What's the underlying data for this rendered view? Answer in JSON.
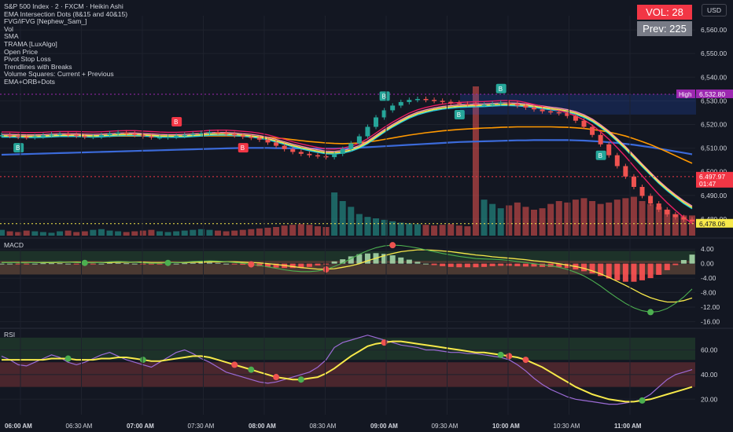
{
  "header": {
    "title": "S&P 500 Index · 2 · FXCM · Heikin Ashi",
    "indicators": [
      "EMA Intersection Dots (8&15 and 40&15)",
      "FVG/iFVG [Nephew_Sam_]",
      "Vol",
      "SMA",
      "TRAMA [LuxAlgo]",
      "Open Price",
      "Pivot Stop Loss",
      "Trendlines with Breaks",
      "Volume Squares: Current + Previous",
      "EMA+ORB+Dots"
    ],
    "vol_current": "VOL: 28",
    "vol_previous": "Prev: 225",
    "currency": "USD"
  },
  "panes": {
    "macd_label": "MACD",
    "rsi_label": "RSI"
  },
  "colors": {
    "background": "#131722",
    "grid": "#1e222d",
    "up": "#26a69a",
    "down": "#ef5350",
    "ema_fast": "#f7e94a",
    "ema_mid": "#26c6da",
    "ema_slow": "#f48fb1",
    "ema_long": "#e91e63",
    "sma_blue": "#3b6ad9",
    "sma_orange": "#ff9800",
    "high_label": "#9c27b0",
    "price_red": "#f23645",
    "price_yellow": "#f7e94a"
  },
  "chart_data": [
    {
      "type": "candlestick",
      "title": "S&P 500 Index · 2 · FXCM · Heikin Ashi",
      "y_axis_ticks": [
        6480,
        6490,
        6500,
        6510,
        6520,
        6530,
        6540,
        6550,
        6560
      ],
      "ylim": [
        6473,
        6566
      ],
      "x_axis_ticks": [
        "06:00 AM",
        "06:30 AM",
        "07:00 AM",
        "07:30 AM",
        "08:00 AM",
        "08:30 AM",
        "09:00 AM",
        "09:30 AM",
        "10:00 AM",
        "10:30 AM",
        "11:00 AM"
      ],
      "price_labels": [
        {
          "label": "High",
          "value": "6,532.80"
        },
        {
          "label": "",
          "value": "6,497.97"
        },
        {
          "label": "",
          "value": "01:47"
        },
        {
          "label": "",
          "value": "6,478.06"
        }
      ],
      "signals": [
        "B",
        "B",
        "B",
        "B",
        "B",
        "B",
        "B"
      ],
      "close_series": [
        6515.5,
        6515.2,
        6514.8,
        6514.6,
        6515.0,
        6515.4,
        6515.8,
        6516.0,
        6515.6,
        6515.2,
        6514.8,
        6514.9,
        6515.5,
        6516.2,
        6516.6,
        6516.2,
        6515.6,
        6515.0,
        6514.6,
        6514.6,
        6514.8,
        6515.2,
        6515.6,
        6516.0,
        6516.4,
        6516.8,
        6516.6,
        6516.0,
        6515.4,
        6514.8,
        6514.4,
        6513.6,
        6512.4,
        6511.0,
        6509.6,
        6508.4,
        6507.6,
        6507.0,
        6506.6,
        6506.2,
        6507.6,
        6509.6,
        6512.0,
        6515.0,
        6519.0,
        6523.0,
        6526.0,
        6528.0,
        6529.5,
        6530.4,
        6530.8,
        6530.4,
        6530.0,
        6529.6,
        6529.2,
        6528.8,
        6528.6,
        6528.4,
        6528.4,
        6528.8,
        6529.2,
        6528.8,
        6528.0,
        6527.2,
        6526.4,
        6525.6,
        6525.2,
        6524.8,
        6523.6,
        6521.6,
        6519.0,
        6515.6,
        6511.6,
        6507.0,
        6502.4,
        6498.0,
        6493.6,
        6489.8,
        6486.6,
        6484.0,
        6482.0,
        6480.8,
        6479.8,
        6479.0
      ],
      "ema_fast": [
        6515.2,
        6515.2,
        6515.1,
        6515.0,
        6515.0,
        6515.1,
        6515.3,
        6515.4,
        6515.4,
        6515.4,
        6515.3,
        6515.2,
        6515.3,
        6515.5,
        6515.7,
        6515.8,
        6515.8,
        6515.6,
        6515.4,
        6515.2,
        6515.1,
        6515.1,
        6515.2,
        6515.4,
        6515.6,
        6515.9,
        6516.0,
        6516.0,
        6515.8,
        6515.5,
        6515.2,
        6514.7,
        6514.0,
        6513.1,
        6512.1,
        6511.1,
        6510.2,
        6509.4,
        6508.7,
        6508.1,
        6508.0,
        6508.4,
        6509.2,
        6510.5,
        6512.4,
        6514.8,
        6517.2,
        6519.4,
        6521.4,
        6523.2,
        6524.6,
        6525.6,
        6526.4,
        6527.0,
        6527.4,
        6527.7,
        6527.9,
        6528.0,
        6528.1,
        6528.3,
        6528.5,
        6528.5,
        6528.4,
        6528.1,
        6527.7,
        6527.2,
        6526.7,
        6526.3,
        6525.7,
        6524.8,
        6523.5,
        6521.7,
        6519.3,
        6516.6,
        6513.4,
        6510.0,
        6506.3,
        6502.7,
        6499.1,
        6495.6,
        6492.5,
        6489.7,
        6487.1,
        6484.9
      ],
      "sma_blue": [
        6507.2,
        6507.3,
        6507.4,
        6507.5,
        6507.6,
        6507.7,
        6507.8,
        6507.9,
        6508.0,
        6508.1,
        6508.2,
        6508.3,
        6508.4,
        6508.5,
        6508.6,
        6508.7,
        6508.8,
        6508.9,
        6509.0,
        6509.1,
        6509.2,
        6509.3,
        6509.4,
        6509.5,
        6509.6,
        6509.7,
        6509.8,
        6509.9,
        6510.0,
        6510.1,
        6510.1,
        6510.1,
        6510.1,
        6510.0,
        6510.0,
        6509.9,
        6509.9,
        6509.8,
        6509.8,
        6509.8,
        6509.8,
        6509.9,
        6510.0,
        6510.2,
        6510.4,
        6510.6,
        6510.8,
        6511.0,
        6511.2,
        6511.4,
        6511.6,
        6511.8,
        6512.0,
        6512.2,
        6512.4,
        6512.6,
        6512.7,
        6512.8,
        6512.9,
        6513.0,
        6513.1,
        6513.2,
        6513.3,
        6513.3,
        6513.4,
        6513.4,
        6513.4,
        6513.4,
        6513.4,
        6513.3,
        6513.2,
        6513.0,
        6512.8,
        6512.5,
        6512.2,
        6511.8,
        6511.4,
        6510.9,
        6510.4,
        6509.8,
        6509.2,
        6508.6,
        6508.0,
        6507.4
      ],
      "sma_orange": [
        6515.0,
        6515.0,
        6515.0,
        6515.0,
        6515.0,
        6515.0,
        6515.0,
        6515.0,
        6515.0,
        6515.0,
        6515.0,
        6515.0,
        6515.0,
        6515.0,
        6515.1,
        6515.1,
        6515.1,
        6515.1,
        6515.1,
        6515.1,
        6515.1,
        6515.1,
        6515.1,
        6515.1,
        6515.1,
        6515.2,
        6515.2,
        6515.2,
        6515.2,
        6515.1,
        6515.0,
        6514.8,
        6514.6,
        6514.3,
        6514.0,
        6513.6,
        6513.2,
        6512.8,
        6512.5,
        6512.2,
        6512.0,
        6511.9,
        6512.0,
        6512.2,
        6512.6,
        6513.1,
        6513.7,
        6514.3,
        6514.9,
        6515.5,
        6516.0,
        6516.5,
        6516.9,
        6517.3,
        6517.6,
        6517.9,
        6518.1,
        6518.3,
        6518.5,
        6518.6,
        6518.8,
        6518.9,
        6519.0,
        6519.0,
        6519.0,
        6519.0,
        6519.0,
        6518.9,
        6518.8,
        6518.6,
        6518.3,
        6517.9,
        6517.4,
        6516.8,
        6516.0,
        6515.1,
        6514.0,
        6512.8,
        6511.5,
        6510.0,
        6508.4,
        6506.8,
        6505.2,
        6503.6
      ],
      "volume": [
        8,
        6,
        5,
        7,
        6,
        5,
        4,
        6,
        7,
        5,
        6,
        8,
        9,
        7,
        6,
        5,
        6,
        7,
        8,
        6,
        5,
        6,
        7,
        8,
        9,
        8,
        7,
        6,
        7,
        8,
        9,
        10,
        11,
        12,
        14,
        15,
        16,
        15,
        13,
        12,
        60,
        48,
        40,
        30,
        26,
        24,
        22,
        20,
        18,
        17,
        16,
        15,
        14,
        15,
        16,
        14,
        13,
        225,
        50,
        44,
        38,
        42,
        46,
        40,
        36,
        38,
        44,
        48,
        46,
        50,
        52,
        48,
        44,
        46,
        50,
        52,
        54,
        48,
        44,
        40,
        36,
        30,
        28,
        28
      ]
    },
    {
      "type": "line",
      "title": "MACD",
      "y_axis_ticks": [
        4.0,
        0.0,
        -4.0,
        -8.0,
        -12.0,
        -16.0
      ],
      "ylim": [
        -17,
        6
      ],
      "macd_line": [
        0.3,
        0.3,
        0.2,
        0.2,
        0.3,
        0.4,
        0.4,
        0.5,
        0.4,
        0.3,
        0.2,
        0.2,
        0.3,
        0.5,
        0.6,
        0.5,
        0.4,
        0.2,
        0.1,
        0.1,
        0.2,
        0.3,
        0.4,
        0.6,
        0.7,
        0.8,
        0.7,
        0.5,
        0.3,
        0.1,
        -0.2,
        -0.5,
        -0.9,
        -1.3,
        -1.7,
        -2.0,
        -2.2,
        -2.2,
        -2.0,
        -1.6,
        -0.8,
        0.2,
        1.4,
        2.6,
        3.6,
        4.4,
        4.9,
        5.1,
        5.0,
        4.7,
        4.3,
        3.8,
        3.3,
        2.8,
        2.4,
        2.0,
        1.7,
        1.4,
        1.3,
        1.2,
        1.1,
        0.9,
        0.6,
        0.3,
        0.0,
        -0.3,
        -0.6,
        -1.0,
        -1.6,
        -2.4,
        -3.4,
        -4.7,
        -6.2,
        -7.9,
        -9.5,
        -11.0,
        -12.2,
        -13.0,
        -13.4,
        -13.2,
        -12.4,
        -11.0,
        -9.2,
        -7.0
      ],
      "signal_line": [
        0.3,
        0.3,
        0.3,
        0.3,
        0.3,
        0.3,
        0.3,
        0.4,
        0.4,
        0.4,
        0.3,
        0.3,
        0.3,
        0.3,
        0.4,
        0.4,
        0.4,
        0.4,
        0.3,
        0.3,
        0.3,
        0.3,
        0.3,
        0.4,
        0.4,
        0.5,
        0.5,
        0.5,
        0.5,
        0.4,
        0.3,
        0.2,
        0.0,
        -0.2,
        -0.5,
        -0.8,
        -1.1,
        -1.3,
        -1.5,
        -1.5,
        -1.4,
        -1.0,
        -0.6,
        0.0,
        0.8,
        1.5,
        2.2,
        2.8,
        3.3,
        3.6,
        3.8,
        3.8,
        3.7,
        3.5,
        3.3,
        3.0,
        2.7,
        2.4,
        2.2,
        1.9,
        1.7,
        1.5,
        1.3,
        1.1,
        0.8,
        0.6,
        0.3,
        0.0,
        -0.4,
        -0.8,
        -1.3,
        -2.0,
        -2.8,
        -3.8,
        -4.9,
        -6.0,
        -7.2,
        -8.4,
        -9.4,
        -10.1,
        -10.6,
        -10.6,
        -10.2,
        -9.5
      ],
      "histogram": [
        0.0,
        0.0,
        -0.1,
        -0.1,
        0.0,
        0.1,
        0.1,
        0.1,
        0.0,
        -0.1,
        -0.1,
        -0.1,
        0.0,
        0.2,
        0.2,
        0.1,
        0.0,
        -0.2,
        -0.2,
        -0.2,
        -0.1,
        0.0,
        0.1,
        0.2,
        0.3,
        0.3,
        0.2,
        0.0,
        -0.2,
        -0.3,
        -0.5,
        -0.7,
        -0.9,
        -1.1,
        -1.2,
        -1.2,
        -1.1,
        -0.9,
        -0.5,
        -0.1,
        0.6,
        1.2,
        2.0,
        2.6,
        2.8,
        2.9,
        2.7,
        2.3,
        1.7,
        1.1,
        0.5,
        0.0,
        -0.4,
        -0.7,
        -0.9,
        -1.0,
        -1.0,
        -1.0,
        -0.9,
        -0.7,
        -0.6,
        -0.6,
        -0.7,
        -0.8,
        -0.8,
        -0.9,
        -0.9,
        -1.0,
        -1.2,
        -1.6,
        -2.1,
        -2.7,
        -3.4,
        -4.1,
        -4.6,
        -5.0,
        -5.0,
        -4.6,
        -4.0,
        -3.1,
        -1.8,
        -0.4,
        1.0,
        2.5
      ]
    },
    {
      "type": "line",
      "title": "RSI",
      "y_axis_ticks": [
        60.0,
        40.0,
        20.0
      ],
      "ylim": [
        10,
        75
      ],
      "rsi": [
        55,
        52,
        48,
        47,
        50,
        53,
        56,
        54,
        50,
        48,
        50,
        53,
        56,
        58,
        55,
        52,
        50,
        48,
        46,
        50,
        54,
        58,
        60,
        57,
        53,
        50,
        46,
        42,
        40,
        38,
        36,
        34,
        33,
        34,
        36,
        38,
        40,
        42,
        46,
        52,
        62,
        66,
        68,
        70,
        72,
        70,
        68,
        66,
        64,
        63,
        62,
        60,
        60,
        59,
        58,
        58,
        57,
        57,
        56,
        55,
        54,
        52,
        48,
        43,
        37,
        32,
        28,
        25,
        22,
        20,
        19,
        18,
        17,
        16,
        16,
        17,
        18,
        20,
        24,
        30,
        36,
        40,
        42,
        44
      ],
      "rsi_ma": [
        52,
        52,
        52,
        52,
        52,
        52,
        53,
        53,
        53,
        52,
        52,
        52,
        53,
        53,
        54,
        54,
        53,
        52,
        51,
        51,
        52,
        53,
        54,
        55,
        55,
        54,
        52,
        50,
        48,
        46,
        44,
        42,
        40,
        38,
        37,
        36,
        36,
        37,
        38,
        41,
        45,
        50,
        55,
        59,
        63,
        65,
        66,
        67,
        67,
        66,
        65,
        64,
        63,
        62,
        61,
        60,
        59,
        58,
        58,
        57,
        56,
        55,
        54,
        52,
        49,
        46,
        42,
        38,
        34,
        30,
        27,
        24,
        22,
        20,
        19,
        18,
        18,
        19,
        20,
        22,
        24,
        26,
        28,
        30
      ]
    }
  ]
}
